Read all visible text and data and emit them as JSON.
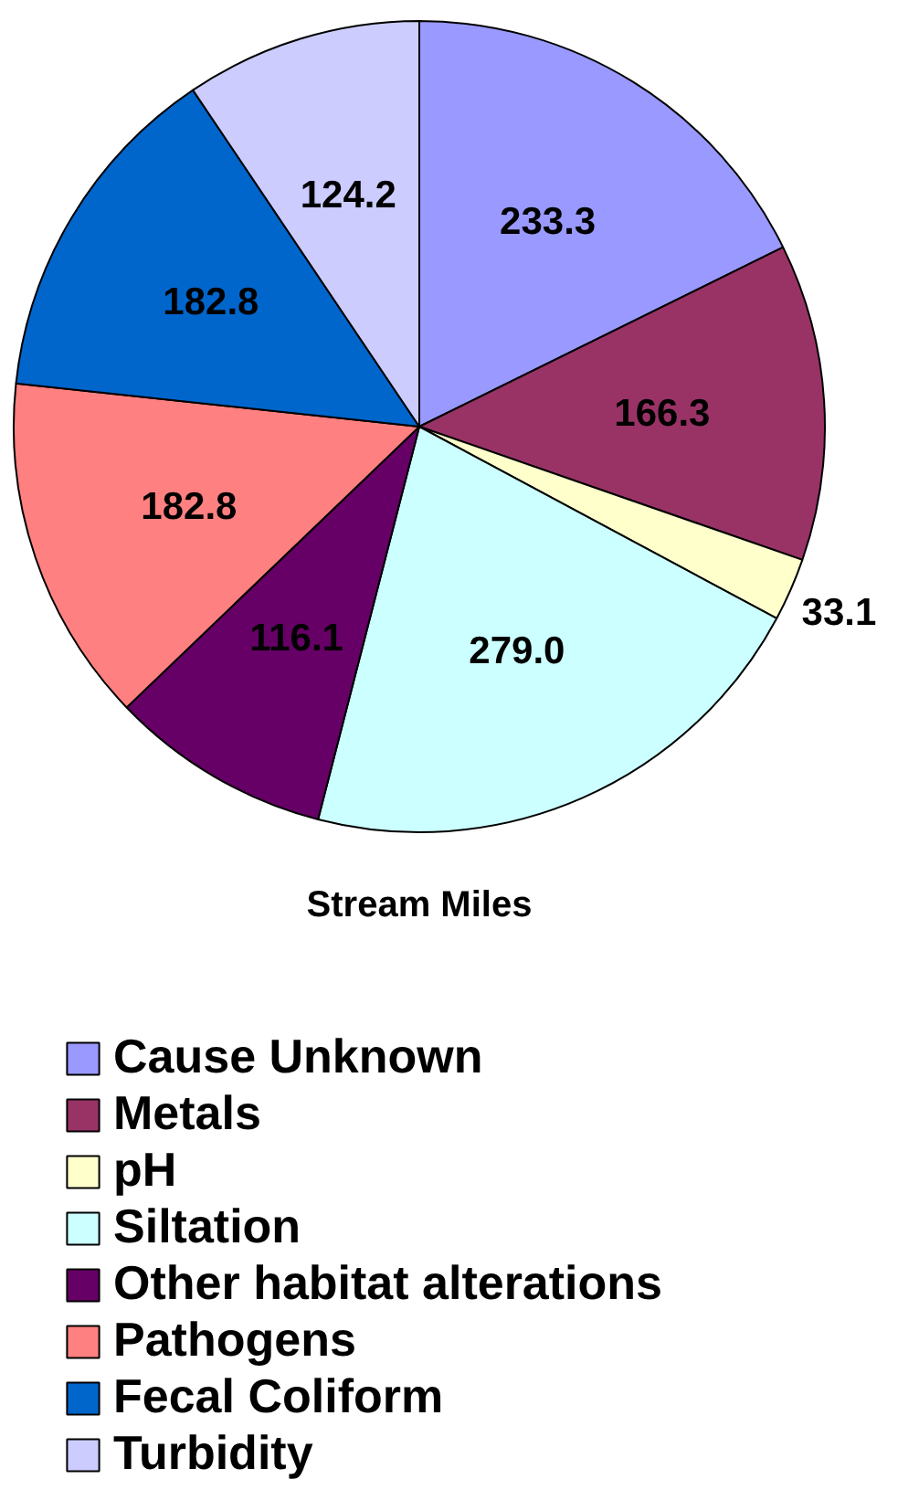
{
  "chart_data": {
    "type": "pie",
    "title": "Stream Miles",
    "categories": [
      "Cause Unknown",
      "Metals",
      "pH",
      "Siltation",
      "Other habitat alterations",
      "Pathogens",
      "Fecal Coliform",
      "Turbidity"
    ],
    "values": [
      233.3,
      166.3,
      33.1,
      279.0,
      116.1,
      182.8,
      182.8,
      124.2
    ],
    "colors": [
      "#9999ff",
      "#993366",
      "#ffffcc",
      "#ccffff",
      "#660066",
      "#ff8080",
      "#0066cc",
      "#ccccff"
    ],
    "value_labels": [
      "233.3",
      "166.3",
      "33.1",
      "279.0",
      "116.1",
      "182.8",
      "182.8",
      "124.2"
    ],
    "legend": "bottom"
  }
}
